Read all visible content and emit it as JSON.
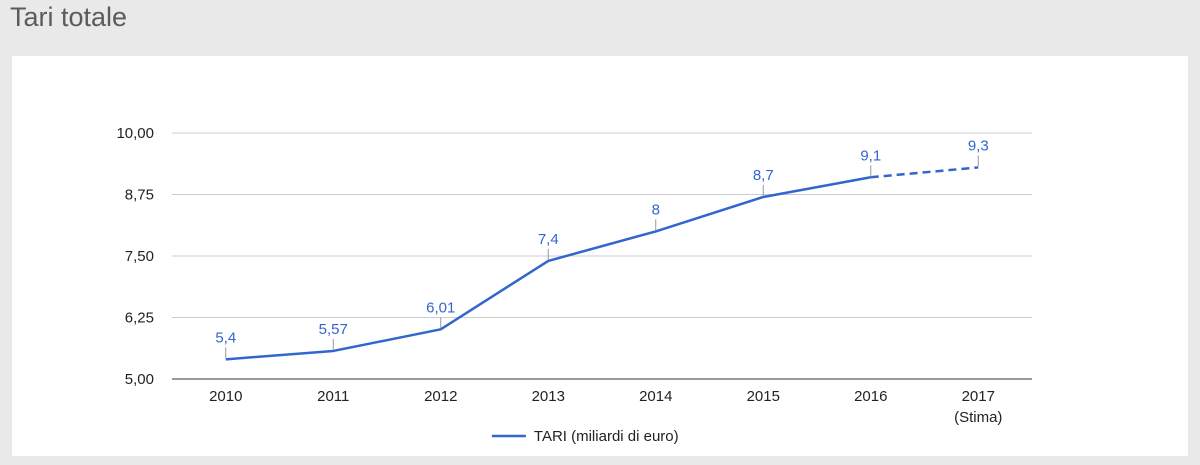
{
  "page": {
    "title": "Tari totale"
  },
  "chart_data": {
    "type": "line",
    "categories": [
      "2010",
      "2011",
      "2012",
      "2013",
      "2014",
      "2015",
      "2016",
      "2017"
    ],
    "category_sublabels": [
      "",
      "",
      "",
      "",
      "",
      "",
      "",
      "(Stima)"
    ],
    "series": [
      {
        "name": "TARI (miliardi di euro)",
        "values": [
          5.4,
          5.57,
          6.01,
          7.4,
          8,
          8.7,
          9.1,
          9.3
        ],
        "value_labels": [
          "5,4",
          "5,57",
          "6,01",
          "7,4",
          "8",
          "8,7",
          "9,1",
          "9,3"
        ],
        "estimated_from_index": 6,
        "color": "#3366cc"
      }
    ],
    "ylim": [
      5,
      10
    ],
    "y_ticks": [
      5,
      6.25,
      7.5,
      8.75,
      10
    ],
    "y_tick_labels": [
      "5,00",
      "6,25",
      "7,50",
      "8,75",
      "10,00"
    ],
    "grid": true,
    "legend_position": "bottom"
  }
}
